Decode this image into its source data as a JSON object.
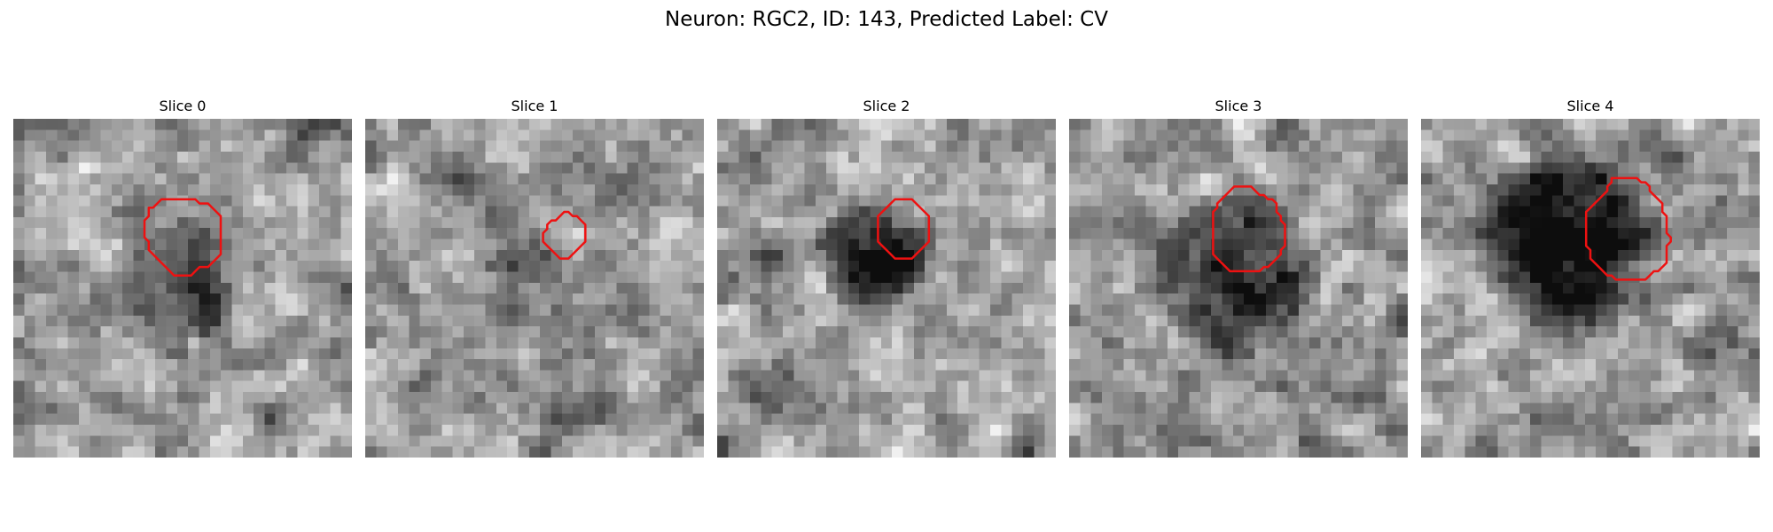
{
  "figure": {
    "title": "Neuron: RGC2, ID: 143, Predicted Label: CV"
  },
  "slices": [
    {
      "label": "Slice 0",
      "contour_color": "#ee1111",
      "contour": [
        [
          52,
          28
        ],
        [
          54,
          28
        ],
        [
          55,
          29
        ],
        [
          56,
          30
        ],
        [
          57,
          31
        ],
        [
          57,
          34
        ],
        [
          57,
          37
        ],
        [
          57,
          40
        ],
        [
          56,
          41
        ],
        [
          55,
          42
        ],
        [
          54,
          43
        ],
        [
          52,
          43
        ],
        [
          51,
          44
        ],
        [
          50,
          45
        ],
        [
          48,
          45
        ],
        [
          46,
          45
        ],
        [
          45,
          44
        ],
        [
          44,
          43
        ],
        [
          43,
          42
        ],
        [
          42,
          41
        ],
        [
          41,
          40
        ],
        [
          40,
          39
        ],
        [
          40,
          37
        ],
        [
          39,
          36
        ],
        [
          39,
          34
        ],
        [
          39,
          32
        ],
        [
          40,
          31
        ],
        [
          40,
          29
        ],
        [
          41,
          29
        ],
        [
          42,
          28
        ],
        [
          43,
          27
        ],
        [
          45,
          27
        ],
        [
          47,
          27
        ],
        [
          49,
          27
        ],
        [
          51,
          27
        ]
      ]
    },
    {
      "label": "Slice 1",
      "contour_color": "#ee1111",
      "contour": [
        [
          57,
          31
        ],
        [
          58,
          31
        ],
        [
          59,
          32
        ],
        [
          60,
          33
        ],
        [
          60,
          35
        ],
        [
          60,
          37
        ],
        [
          59,
          38
        ],
        [
          58,
          39
        ],
        [
          57,
          40
        ],
        [
          56,
          41
        ],
        [
          55,
          41
        ],
        [
          54,
          41
        ],
        [
          53,
          40
        ],
        [
          52,
          39
        ],
        [
          51,
          38
        ],
        [
          50,
          37
        ],
        [
          50,
          35
        ],
        [
          51,
          34
        ],
        [
          51,
          33
        ],
        [
          52,
          32
        ],
        [
          53,
          32
        ],
        [
          54,
          31
        ],
        [
          55,
          30
        ],
        [
          56,
          30
        ]
      ]
    },
    {
      "label": "Slice 2",
      "contour_color": "#ee1111",
      "contour": [
        [
          52,
          27
        ],
        [
          54,
          27
        ],
        [
          55,
          28
        ],
        [
          56,
          29
        ],
        [
          57,
          30
        ],
        [
          58,
          31
        ],
        [
          58,
          33
        ],
        [
          58,
          35
        ],
        [
          58,
          37
        ],
        [
          57,
          38
        ],
        [
          56,
          39
        ],
        [
          55,
          40
        ],
        [
          54,
          41
        ],
        [
          52,
          41
        ],
        [
          50,
          41
        ],
        [
          49,
          40
        ],
        [
          48,
          39
        ],
        [
          47,
          38
        ],
        [
          46,
          37
        ],
        [
          46,
          35
        ],
        [
          46,
          33
        ],
        [
          46,
          31
        ],
        [
          47,
          30
        ],
        [
          48,
          29
        ],
        [
          49,
          28
        ],
        [
          50,
          27
        ]
      ]
    },
    {
      "label": "Slice 3",
      "contour_color": "#ee1111",
      "contour": [
        [
          48,
          24
        ],
        [
          51,
          24
        ],
        [
          52,
          25
        ],
        [
          53,
          26
        ],
        [
          54,
          26
        ],
        [
          55,
          27
        ],
        [
          56,
          27
        ],
        [
          57,
          28
        ],
        [
          57,
          29
        ],
        [
          57,
          30
        ],
        [
          58,
          31
        ],
        [
          58,
          32
        ],
        [
          59,
          33
        ],
        [
          59,
          35
        ],
        [
          59,
          37
        ],
        [
          59,
          38
        ],
        [
          58,
          39
        ],
        [
          58,
          40
        ],
        [
          57,
          41
        ],
        [
          56,
          42
        ],
        [
          55,
          43
        ],
        [
          54,
          43
        ],
        [
          53,
          44
        ],
        [
          51,
          44
        ],
        [
          49,
          44
        ],
        [
          47,
          44
        ],
        [
          46,
          44
        ],
        [
          45,
          43
        ],
        [
          44,
          42
        ],
        [
          43,
          41
        ],
        [
          42,
          40
        ],
        [
          42,
          38
        ],
        [
          42,
          36
        ],
        [
          42,
          34
        ],
        [
          42,
          32
        ],
        [
          42,
          30
        ],
        [
          43,
          29
        ],
        [
          43,
          28
        ],
        [
          44,
          27
        ],
        [
          45,
          26
        ],
        [
          46,
          25
        ],
        [
          47,
          24
        ]
      ]
    },
    {
      "label": "Slice 4",
      "contour_color": "#ee1111",
      "contour": [
        [
          53,
          22
        ],
        [
          55,
          22
        ],
        [
          57,
          22
        ],
        [
          59,
          22
        ],
        [
          60,
          23
        ],
        [
          61,
          23
        ],
        [
          62,
          24
        ],
        [
          62,
          25
        ],
        [
          63,
          26
        ],
        [
          64,
          27
        ],
        [
          65,
          28
        ],
        [
          65,
          30
        ],
        [
          66,
          31
        ],
        [
          66,
          33
        ],
        [
          66,
          35
        ],
        [
          67,
          36
        ],
        [
          67,
          37
        ],
        [
          66,
          38
        ],
        [
          66,
          40
        ],
        [
          66,
          42
        ],
        [
          65,
          43
        ],
        [
          64,
          44
        ],
        [
          63,
          44
        ],
        [
          62,
          45
        ],
        [
          61,
          46
        ],
        [
          59,
          46
        ],
        [
          58,
          46
        ],
        [
          56,
          46
        ],
        [
          54,
          46
        ],
        [
          53,
          45
        ],
        [
          52,
          45
        ],
        [
          51,
          44
        ],
        [
          50,
          43
        ],
        [
          49,
          42
        ],
        [
          48,
          41
        ],
        [
          48,
          39
        ],
        [
          47,
          38
        ],
        [
          47,
          36
        ],
        [
          47,
          34
        ],
        [
          47,
          32
        ],
        [
          47,
          30
        ],
        [
          48,
          29
        ],
        [
          49,
          28
        ],
        [
          50,
          27
        ],
        [
          51,
          26
        ],
        [
          52,
          25
        ],
        [
          52,
          24
        ],
        [
          53,
          23
        ]
      ]
    }
  ],
  "rendering": {
    "grid_size": 31,
    "darkness_centers": [
      {
        "x": 15,
        "y": 14,
        "r": 6,
        "depth": 0.35
      },
      {
        "x": 15,
        "y": 14,
        "r": 5,
        "depth": 0.15
      },
      {
        "x": 14,
        "y": 12,
        "r": 5.5,
        "depth": 0.55
      },
      {
        "x": 15,
        "y": 14,
        "r": 8,
        "depth": 0.45
      },
      {
        "x": 13,
        "y": 11,
        "r": 9,
        "depth": 0.55
      }
    ]
  }
}
